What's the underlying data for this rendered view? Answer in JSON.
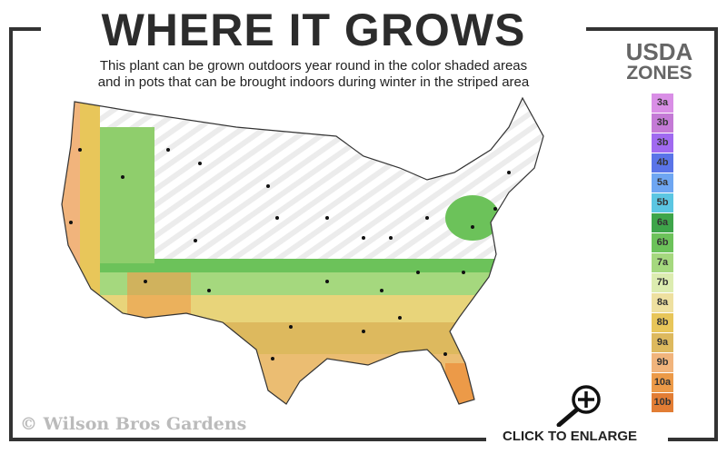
{
  "header": {
    "title": "WHERE IT GROWS",
    "subtitle_line1": "This plant can be grown outdoors year round in the color shaded areas",
    "subtitle_line2": "and in pots that can be brought indoors during winter in the striped area"
  },
  "legend": {
    "title_line1": "USDA",
    "title_line2": "ZONES",
    "zones": [
      {
        "label": "3a",
        "color": "#d98ee6"
      },
      {
        "label": "3b",
        "color": "#c47ad6"
      },
      {
        "label": "3b",
        "color": "#a06af0"
      },
      {
        "label": "4b",
        "color": "#5a74e8"
      },
      {
        "label": "5a",
        "color": "#6ea6f2"
      },
      {
        "label": "5b",
        "color": "#5bc6e2"
      },
      {
        "label": "6a",
        "color": "#3ea54a"
      },
      {
        "label": "6b",
        "color": "#6cc25a"
      },
      {
        "label": "7a",
        "color": "#a5d87e"
      },
      {
        "label": "7b",
        "color": "#dcecb0"
      },
      {
        "label": "8a",
        "color": "#eee0a0"
      },
      {
        "label": "8b",
        "color": "#e8c65a"
      },
      {
        "label": "9a",
        "color": "#ddb95e"
      },
      {
        "label": "9b",
        "color": "#f1b47c"
      },
      {
        "label": "10a",
        "color": "#ec9a48"
      },
      {
        "label": "10b",
        "color": "#e27d34"
      }
    ]
  },
  "footer": {
    "copyright": "© Wilson Bros Gardens",
    "enlarge_label": "CLICK TO ENLARGE",
    "enlarge_icon": "magnifier-plus-icon"
  }
}
